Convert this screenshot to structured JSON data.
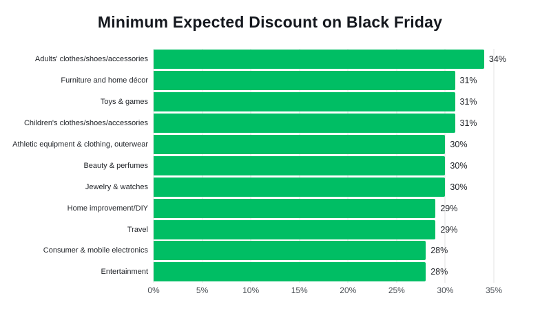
{
  "chart_data": {
    "type": "bar",
    "orientation": "horizontal",
    "title": "Minimum Expected Discount on Black Friday",
    "categories": [
      "Adults' clothes/shoes/accessories",
      "Furniture and home décor",
      "Toys & games",
      "Children's clothes/shoes/accessories",
      "Athletic equipment & clothing, outerwear",
      "Beauty & perfumes",
      "Jewelry & watches",
      "Home improvement/DIY",
      "Travel",
      "Consumer & mobile electronics",
      "Entertainment"
    ],
    "values": [
      34,
      31,
      31,
      31,
      30,
      30,
      30,
      29,
      29,
      28,
      28
    ],
    "value_suffix": "%",
    "xlabel": "",
    "ylabel": "",
    "xlim": [
      0,
      35
    ],
    "x_ticks": [
      "0%",
      "5%",
      "10%",
      "15%",
      "20%",
      "25%",
      "30%",
      "35%"
    ],
    "grid": "vertical",
    "legend": "none",
    "colors": {
      "bar": "#00be64",
      "title": "#15181e",
      "label": "#23262b",
      "tick": "#4a4f55",
      "gridline": "#e3e3e3",
      "background": "#ffffff"
    }
  }
}
